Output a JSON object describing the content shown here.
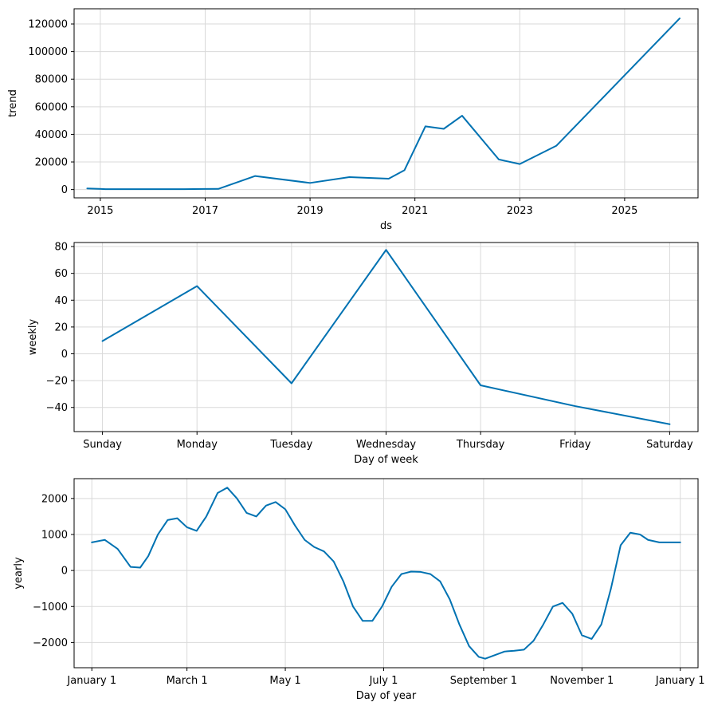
{
  "chart_data": [
    {
      "type": "line",
      "title": "",
      "xlabel": "ds",
      "ylabel": "trend",
      "xlim": [
        2014.5,
        2026.4
      ],
      "ylim": [
        -6000,
        131000
      ],
      "x_ticks": [
        2015,
        2017,
        2019,
        2021,
        2023,
        2025
      ],
      "x_tick_labels": [
        "2015",
        "2017",
        "2019",
        "2021",
        "2023",
        "2025"
      ],
      "y_ticks": [
        0,
        20000,
        40000,
        60000,
        80000,
        100000,
        120000
      ],
      "y_tick_labels": [
        "0",
        "20000",
        "40000",
        "60000",
        "80000",
        "100000",
        "120000"
      ],
      "grid": true,
      "color": "#0072B2",
      "series": [
        {
          "name": "trend",
          "x": [
            2014.75,
            2015.1,
            2016.6,
            2017.25,
            2017.95,
            2019.0,
            2019.75,
            2020.5,
            2020.8,
            2021.2,
            2021.55,
            2021.9,
            2022.6,
            2023.0,
            2023.7,
            2026.05
          ],
          "y": [
            800,
            300,
            300,
            500,
            9800,
            4800,
            9000,
            7900,
            14000,
            45800,
            44000,
            53500,
            21800,
            18500,
            31800,
            124000
          ]
        }
      ]
    },
    {
      "type": "line",
      "title": "",
      "xlabel": "Day of week",
      "ylabel": "weekly",
      "xlim": [
        -0.3,
        6.3
      ],
      "ylim": [
        -58,
        83
      ],
      "x_ticks": [
        0,
        1,
        2,
        3,
        4,
        5,
        6
      ],
      "categories": [
        "Sunday",
        "Monday",
        "Tuesday",
        "Wednesday",
        "Thursday",
        "Friday",
        "Saturday"
      ],
      "y_ticks": [
        -40,
        -20,
        0,
        20,
        40,
        60,
        80
      ],
      "y_tick_labels": [
        "−40",
        "−20",
        "0",
        "20",
        "40",
        "60",
        "80"
      ],
      "grid": true,
      "color": "#0072B2",
      "series": [
        {
          "name": "weekly",
          "x": [
            0,
            1,
            2,
            3,
            4,
            5,
            6
          ],
          "y": [
            9.5,
            50.5,
            -22,
            77.5,
            -23.5,
            -39,
            -52.5
          ]
        }
      ]
    },
    {
      "type": "line",
      "title": "",
      "xlabel": "Day of year",
      "ylabel": "yearly",
      "xlim": [
        -11,
        376
      ],
      "ylim": [
        -2700,
        2550
      ],
      "x_ticks": [
        0,
        59,
        120,
        181,
        243,
        304,
        365
      ],
      "x_tick_labels": [
        "January 1",
        "March 1",
        "May 1",
        "July 1",
        "September 1",
        "November 1",
        "January 1"
      ],
      "y_ticks": [
        -2000,
        -1000,
        0,
        1000,
        2000
      ],
      "y_tick_labels": [
        "−2000",
        "−1000",
        "0",
        "1000",
        "2000"
      ],
      "grid": true,
      "color": "#0072B2",
      "series": [
        {
          "name": "yearly",
          "x": [
            0,
            8,
            16,
            24,
            30,
            35,
            41,
            47,
            53,
            59,
            65,
            71,
            78,
            84,
            90,
            96,
            102,
            108,
            114,
            120,
            126,
            132,
            138,
            144,
            150,
            156,
            162,
            168,
            174,
            180,
            186,
            192,
            198,
            204,
            210,
            216,
            222,
            228,
            234,
            240,
            244,
            250,
            256,
            262,
            268,
            274,
            280,
            286,
            292,
            298,
            304,
            310,
            316,
            322,
            328,
            334,
            340,
            345,
            352,
            358,
            365
          ],
          "y": [
            780,
            850,
            600,
            100,
            80,
            400,
            1000,
            1400,
            1450,
            1200,
            1100,
            1500,
            2150,
            2300,
            2000,
            1600,
            1500,
            1800,
            1900,
            1700,
            1250,
            850,
            650,
            530,
            250,
            -300,
            -1000,
            -1400,
            -1400,
            -1000,
            -450,
            -100,
            -30,
            -40,
            -100,
            -300,
            -800,
            -1500,
            -2100,
            -2400,
            -2450,
            -2350,
            -2250,
            -2230,
            -2200,
            -1950,
            -1500,
            -1000,
            -900,
            -1200,
            -1800,
            -1900,
            -1500,
            -500,
            700,
            1050,
            1000,
            850,
            780,
            780,
            780
          ]
        }
      ]
    }
  ]
}
